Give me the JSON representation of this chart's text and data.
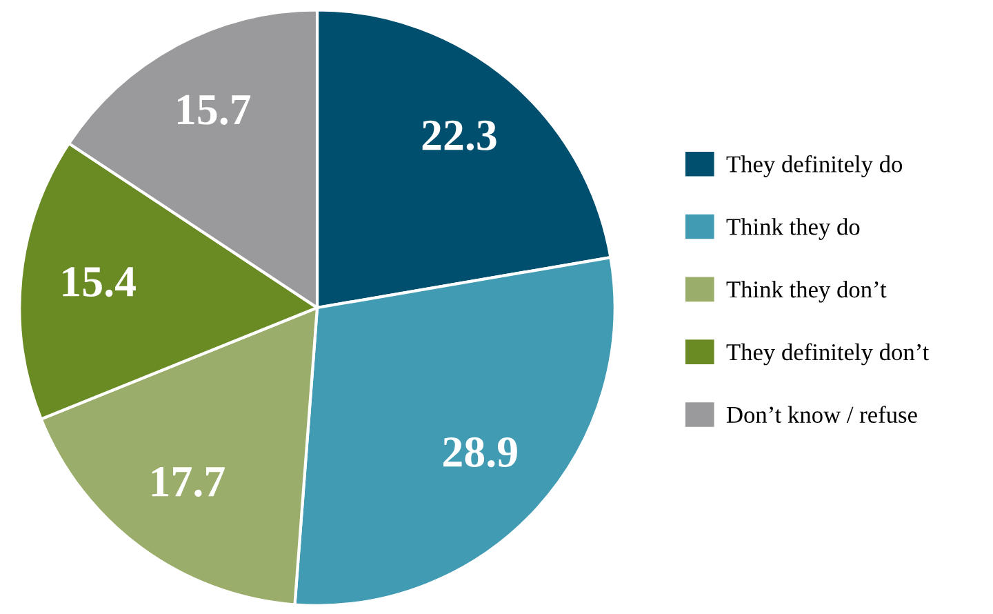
{
  "chart_data": {
    "type": "pie",
    "categories": [
      "They definitely do",
      "Think they do",
      "Think they don’t",
      "They definitely don’t",
      "Don’t know / refuse"
    ],
    "values": [
      22.3,
      28.9,
      17.7,
      15.4,
      15.7
    ],
    "colors": [
      "#004f6e",
      "#419bb2",
      "#9aad6a",
      "#6a8a23",
      "#9a9a9c"
    ],
    "data_labels": true,
    "legend": "right"
  }
}
